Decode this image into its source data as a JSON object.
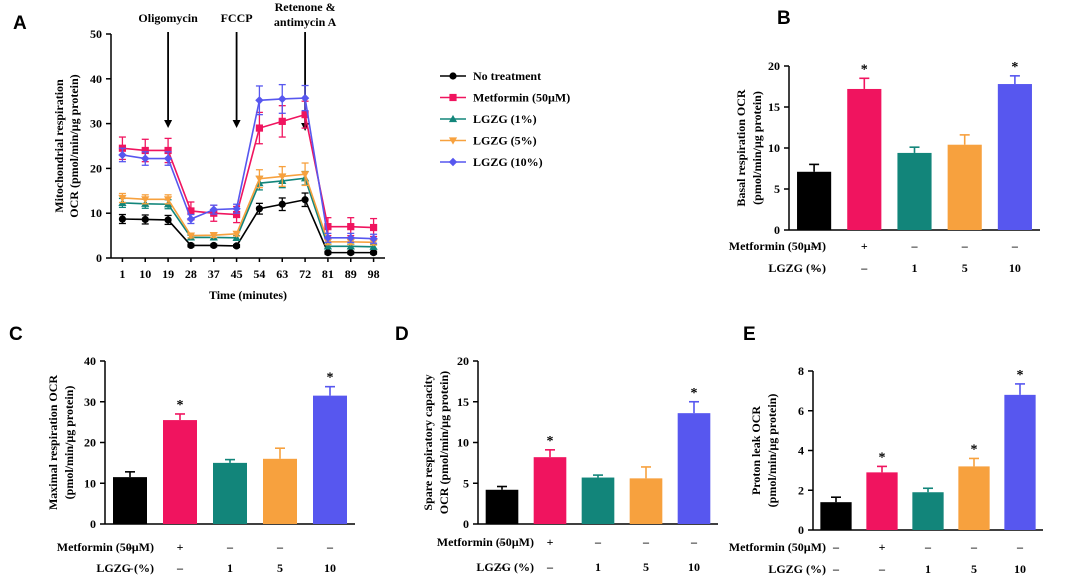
{
  "colors": {
    "no_treatment": "#000000",
    "metformin": "#f0145f",
    "lgzg1": "#12857a",
    "lgzg5": "#f7a13e",
    "lgzg10": "#5757ef"
  },
  "chart_data": [
    {
      "panel": "A",
      "type": "line",
      "ylabel_line1": "Mitochondrial respiration",
      "ylabel_line2": "OCR (pmol/min/µg protein)",
      "xlabel": "Time (minutes)",
      "x": [
        1,
        10,
        19,
        28,
        37,
        45,
        54,
        63,
        72,
        81,
        89,
        98
      ],
      "x_tick_labels": [
        "1",
        "10",
        "19",
        "28",
        "37",
        "45",
        "54",
        "63",
        "72",
        "81",
        "89",
        "98"
      ],
      "ylim": [
        0,
        50
      ],
      "yticks": [
        0,
        10,
        20,
        30,
        40,
        50
      ],
      "annotations": [
        {
          "text": "Oligomycin",
          "at_index": 2.5
        },
        {
          "text": "FCCP",
          "at_index": 5.5
        },
        {
          "text_line1": "Retenone &",
          "text_line2": "antimycin A",
          "at_index": 8.5
        }
      ],
      "series": [
        {
          "name": "No treatment",
          "key": "no_treatment",
          "marker": "circle",
          "values": [
            8.7,
            8.6,
            8.5,
            2.8,
            2.8,
            2.7,
            11,
            12,
            13,
            1.2,
            1.2,
            1.2
          ],
          "errors": [
            1,
            1,
            1,
            0.3,
            0.3,
            0.3,
            1.2,
            1.4,
            1.5,
            0.3,
            0.3,
            0.3
          ]
        },
        {
          "name": "Metformin (50µM)",
          "key": "metformin",
          "marker": "square",
          "values": [
            24.5,
            24,
            24,
            10.5,
            10,
            9.7,
            29,
            30.5,
            32,
            7,
            7,
            6.8
          ],
          "errors": [
            2.5,
            2.5,
            2.7,
            2,
            1.8,
            1.8,
            3.5,
            3.5,
            3,
            2,
            2,
            2
          ]
        },
        {
          "name": "LGZG (1%)",
          "key": "lgzg1",
          "marker": "triangle",
          "values": [
            12.3,
            12.1,
            12,
            4.6,
            4.6,
            4.5,
            16.7,
            17.2,
            17.8,
            2.6,
            2.6,
            2.5
          ],
          "errors": [
            1,
            1,
            1,
            0.5,
            0.5,
            0.5,
            1.5,
            1.5,
            1.5,
            0.5,
            0.5,
            0.5
          ]
        },
        {
          "name": "LGZG (5%)",
          "key": "lgzg5",
          "marker": "triangle-down",
          "values": [
            13.4,
            13.1,
            13.1,
            5,
            5.1,
            5.4,
            17.7,
            18.2,
            18.7,
            3.6,
            3.6,
            3.5
          ],
          "errors": [
            1,
            1,
            1,
            0.5,
            0.5,
            0.5,
            2,
            2.2,
            2.5,
            0.6,
            0.6,
            0.6
          ]
        },
        {
          "name": "LGZG (10%)",
          "key": "lgzg10",
          "marker": "diamond",
          "values": [
            23,
            22.2,
            22.2,
            8.7,
            10.8,
            11,
            35.2,
            35.5,
            35.7,
            4.5,
            4.5,
            4.3
          ],
          "errors": [
            1.5,
            1.5,
            1.5,
            1,
            1,
            1,
            3.2,
            3.2,
            2.8,
            1,
            1,
            1
          ]
        }
      ]
    },
    {
      "panel": "B",
      "type": "bar",
      "ylabel_line1": "Basal respiration OCR",
      "ylabel_line2": "(pmol/min/µg protein)",
      "ylim": [
        0,
        20
      ],
      "yticks": [
        0,
        5,
        10,
        15,
        20
      ],
      "values": [
        7.1,
        17.2,
        9.4,
        10.4,
        17.8
      ],
      "errors": [
        0.9,
        1.3,
        0.7,
        1.2,
        1.0
      ],
      "significant": [
        false,
        true,
        false,
        false,
        true
      ],
      "colors": [
        "no_treatment",
        "metformin",
        "lgzg1",
        "lgzg5",
        "lgzg10"
      ],
      "row1_label": "Metformin (50µM)",
      "row1": [
        "–",
        "+",
        "–",
        "–",
        "–"
      ],
      "row2_label": "LGZG (%)",
      "row2": [
        "–",
        "–",
        "1",
        "5",
        "10"
      ]
    },
    {
      "panel": "C",
      "type": "bar",
      "ylabel_line1": "Maximal respiration OCR",
      "ylabel_line2": "(pmol/min/µg protein)",
      "ylim": [
        0,
        40
      ],
      "yticks": [
        0,
        10,
        20,
        30,
        40
      ],
      "values": [
        11.5,
        25.5,
        15,
        16,
        31.5
      ],
      "errors": [
        1.3,
        1.5,
        0.8,
        2.6,
        2.2
      ],
      "significant": [
        false,
        true,
        false,
        false,
        true
      ],
      "colors": [
        "no_treatment",
        "metformin",
        "lgzg1",
        "lgzg5",
        "lgzg10"
      ],
      "row1_label": "Metformin (50µM)",
      "row1": [
        "–",
        "+",
        "–",
        "–",
        "–"
      ],
      "row2_label": "LGZG (%)",
      "row2": [
        "–",
        "–",
        "1",
        "5",
        "10"
      ]
    },
    {
      "panel": "D",
      "type": "bar",
      "ylabel_line1": "Spare respiratory capacity",
      "ylabel_line2": "OCR (pmol/min/µg protein)",
      "ylim": [
        0,
        20
      ],
      "yticks": [
        0,
        5,
        10,
        15,
        20
      ],
      "values": [
        4.2,
        8.2,
        5.7,
        5.6,
        13.6
      ],
      "errors": [
        0.4,
        0.9,
        0.3,
        1.4,
        1.4
      ],
      "significant": [
        false,
        true,
        false,
        false,
        true
      ],
      "colors": [
        "no_treatment",
        "metformin",
        "lgzg1",
        "lgzg5",
        "lgzg10"
      ],
      "row1_label": "Metformin (50µM)",
      "row1": [
        "–",
        "+",
        "–",
        "–",
        "–"
      ],
      "row2_label": "LGZG (%)",
      "row2": [
        "–",
        "–",
        "1",
        "5",
        "10"
      ]
    },
    {
      "panel": "E",
      "type": "bar",
      "ylabel_line1": "Proton leak OCR",
      "ylabel_line2": "(pmol/min/µg protein)",
      "ylim": [
        0,
        8
      ],
      "yticks": [
        0,
        2,
        4,
        6,
        8
      ],
      "values": [
        1.4,
        2.9,
        1.9,
        3.2,
        6.8
      ],
      "errors": [
        0.25,
        0.3,
        0.2,
        0.4,
        0.55
      ],
      "significant": [
        false,
        true,
        false,
        true,
        true
      ],
      "colors": [
        "no_treatment",
        "metformin",
        "lgzg1",
        "lgzg5",
        "lgzg10"
      ],
      "row1_label": "Metformin (50µM)",
      "row1": [
        "–",
        "+",
        "–",
        "–",
        "–"
      ],
      "row2_label": "LGZG (%)",
      "row2": [
        "–",
        "–",
        "1",
        "5",
        "10"
      ]
    }
  ]
}
